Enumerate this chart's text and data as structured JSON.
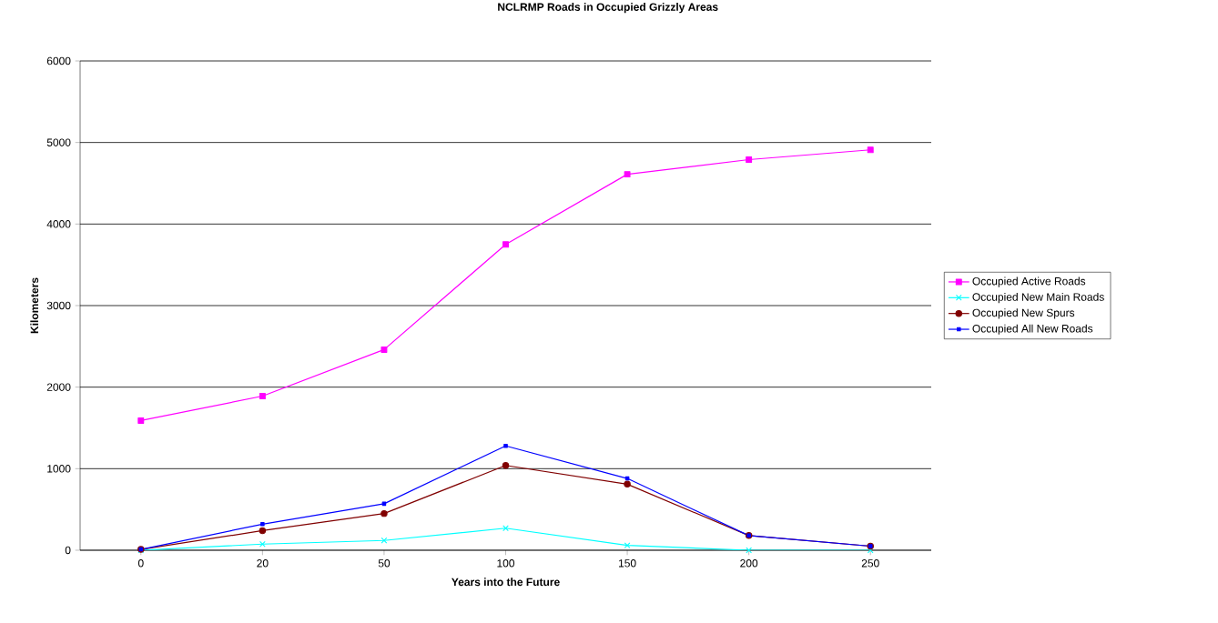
{
  "chart_data": {
    "type": "line",
    "title": "NCLRMP Roads in Occupied Grizzly Areas",
    "xlabel": "Years into the Future",
    "ylabel": "Kilometers",
    "categories": [
      "0",
      "20",
      "50",
      "100",
      "150",
      "200",
      "250"
    ],
    "series": [
      {
        "name": "Occupied Active Roads",
        "color": "#ff00ff",
        "marker": "square",
        "values": [
          1590,
          1890,
          2460,
          3750,
          4610,
          4790,
          4910
        ]
      },
      {
        "name": "Occupied New Main Roads",
        "color": "#00ffff",
        "marker": "cross",
        "values": [
          0,
          75,
          120,
          270,
          60,
          0,
          0
        ]
      },
      {
        "name": "Occupied New Spurs",
        "color": "#800000",
        "marker": "circle",
        "values": [
          10,
          240,
          450,
          1040,
          810,
          180,
          50
        ]
      },
      {
        "name": "Occupied All New Roads",
        "color": "#0000ff",
        "marker": "square",
        "values": [
          10,
          320,
          570,
          1280,
          880,
          180,
          50
        ]
      }
    ],
    "ylim": [
      0,
      6000
    ],
    "yticks": [
      0,
      1000,
      2000,
      3000,
      4000,
      5000,
      6000
    ],
    "grid": "y",
    "legend": "right"
  }
}
